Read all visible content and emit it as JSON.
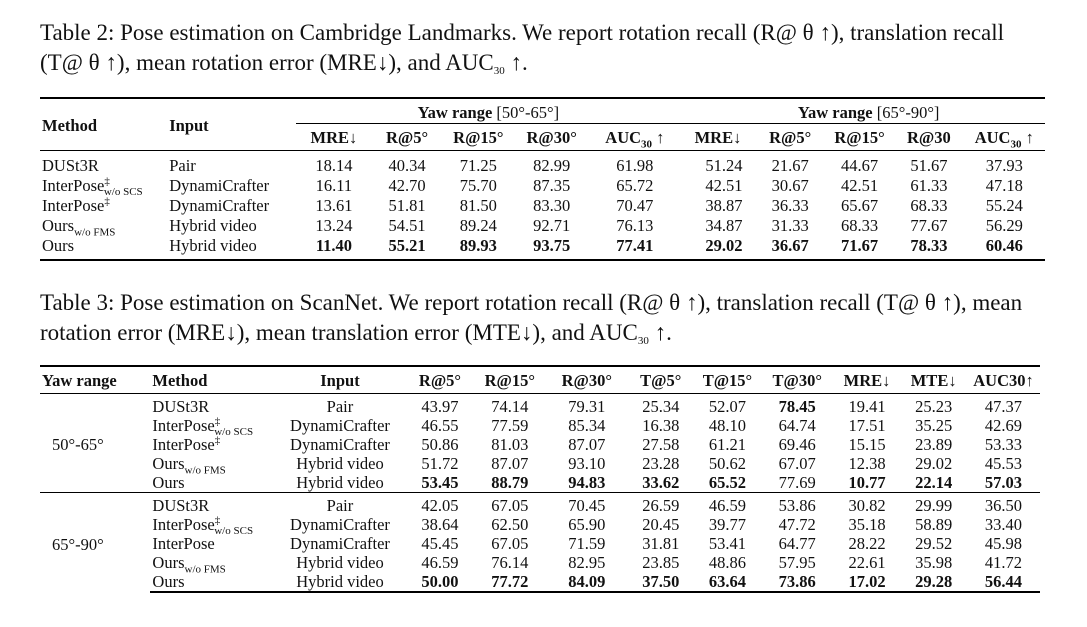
{
  "table2": {
    "caption": "Table 2: Pose estimation on Cambridge Landmarks. We report rotation recall (R@ θ ↑), translation recall (T@ θ ↑), mean rotation error (MRE↓), and AUC30 ↑.",
    "caption_pre": "Table 2: Pose estimation on Cambridge Landmarks. We report rotation recall (R@ θ ↑), translation recall (T@ θ ↑), mean rotation error (MRE↓), and AUC",
    "caption_sub": "30",
    "caption_post": " ↑.",
    "headers": {
      "method": "Method",
      "input": "Input",
      "group1_bold": "Yaw range",
      "group1_range": "[50°-65°]",
      "group2_bold": "Yaw range",
      "group2_range": "[65°-90°]",
      "cols": [
        "MRE↓",
        "R@5°",
        "R@15°",
        "R@30°",
        "AUC",
        "MRE↓",
        "R@5°",
        "R@15°",
        "R@30",
        "AUC"
      ],
      "auc_sub": "30",
      "auc_arrow": " ↑"
    },
    "rows": [
      {
        "method": "DUSt3R",
        "input": "Pair",
        "values": [
          "18.14",
          "40.34",
          "71.25",
          "82.99",
          "61.98",
          "51.24",
          "21.67",
          "44.67",
          "51.67",
          "37.93"
        ]
      },
      {
        "method": "InterPose",
        "sup": "‡",
        "sub": "w/o SCS",
        "input": "DynamiCrafter",
        "values": [
          "16.11",
          "42.70",
          "75.70",
          "87.35",
          "65.72",
          "42.51",
          "30.67",
          "42.51",
          "61.33",
          "47.18"
        ]
      },
      {
        "method": "InterPose",
        "sup": "‡",
        "input": "DynamiCrafter",
        "values": [
          "13.61",
          "51.81",
          "81.50",
          "83.30",
          "70.47",
          "38.87",
          "36.33",
          "65.67",
          "68.33",
          "55.24"
        ]
      },
      {
        "method": "Ours",
        "sub": "w/o FMS",
        "input": "Hybrid video",
        "values": [
          "13.24",
          "54.51",
          "89.24",
          "92.71",
          "76.13",
          "34.87",
          "31.33",
          "68.33",
          "77.67",
          "56.29"
        ]
      },
      {
        "method": "Ours",
        "input": "Hybrid video",
        "values": [
          "11.40",
          "55.21",
          "89.93",
          "93.75",
          "77.41",
          "29.02",
          "36.67",
          "71.67",
          "78.33",
          "60.46"
        ]
      }
    ]
  },
  "table3": {
    "caption_pre": "Table 3: Pose estimation on ScanNet. We report rotation recall (R@ θ ↑), translation recall (T@ θ ↑), mean rotation error (MRE↓), mean translation error (MTE↓), and AUC",
    "caption_sub": "30",
    "caption_post": " ↑.",
    "headers": [
      "Yaw range",
      "Method",
      "Input",
      "R@5°",
      "R@15°",
      "R@30°",
      "T@5°",
      "T@15°",
      "T@30°",
      "MRE↓",
      "MTE↓",
      "AUC30↑"
    ],
    "groups": [
      {
        "label": "50°-65°",
        "rows": [
          {
            "method": "DUSt3R",
            "input": "Pair",
            "values": [
              "43.97",
              "74.14",
              "79.31",
              "25.34",
              "52.07",
              "78.45",
              "19.41",
              "25.23",
              "47.37"
            ]
          },
          {
            "method": "InterPose",
            "sup": "‡",
            "sub": "w/o SCS",
            "input": "DynamiCrafter",
            "values": [
              "46.55",
              "77.59",
              "85.34",
              "16.38",
              "48.10",
              "64.74",
              "17.51",
              "35.25",
              "42.69"
            ]
          },
          {
            "method": "InterPose",
            "sup": "‡",
            "input": "DynamiCrafter",
            "values": [
              "50.86",
              "81.03",
              "87.07",
              "27.58",
              "61.21",
              "69.46",
              "15.15",
              "23.89",
              "53.33"
            ]
          },
          {
            "method": "Ours",
            "sub": "w/o FMS",
            "input": "Hybrid video",
            "values": [
              "51.72",
              "87.07",
              "93.10",
              "23.28",
              "50.62",
              "67.07",
              "12.38",
              "29.02",
              "45.53"
            ]
          },
          {
            "method": "Ours",
            "input": "Hybrid video",
            "values": [
              "53.45",
              "88.79",
              "94.83",
              "33.62",
              "65.52",
              "77.69",
              "10.77",
              "22.14",
              "57.03"
            ]
          }
        ]
      },
      {
        "label": "65°-90°",
        "rows": [
          {
            "method": "DUSt3R",
            "input": "Pair",
            "values": [
              "42.05",
              "67.05",
              "70.45",
              "26.59",
              "46.59",
              "53.86",
              "30.82",
              "29.99",
              "36.50"
            ]
          },
          {
            "method": "InterPose",
            "sup": "‡",
            "sub": "w/o SCS",
            "input": "DynamiCrafter",
            "values": [
              "38.64",
              "62.50",
              "65.90",
              "20.45",
              "39.77",
              "47.72",
              "35.18",
              "58.89",
              "33.40"
            ]
          },
          {
            "method": "InterPose",
            "input": "DynamiCrafter",
            "values": [
              "45.45",
              "67.05",
              "71.59",
              "31.81",
              "53.41",
              "64.77",
              "28.22",
              "29.52",
              "45.98"
            ]
          },
          {
            "method": "Ours",
            "sub": "w/o FMS",
            "input": "Hybrid video",
            "values": [
              "46.59",
              "76.14",
              "82.95",
              "23.85",
              "48.86",
              "57.95",
              "22.61",
              "35.98",
              "41.72"
            ]
          },
          {
            "method": "Ours",
            "input": "Hybrid video",
            "values": [
              "50.00",
              "77.72",
              "84.09",
              "37.50",
              "63.64",
              "73.86",
              "17.02",
              "29.28",
              "56.44"
            ]
          }
        ]
      }
    ]
  }
}
